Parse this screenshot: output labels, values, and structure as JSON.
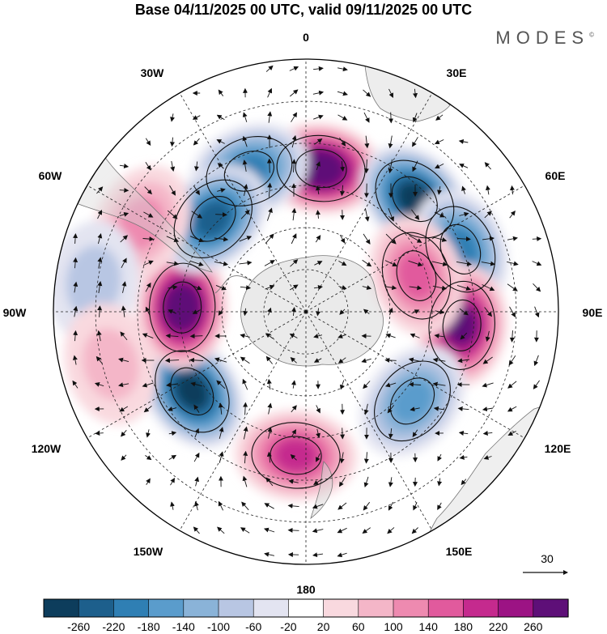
{
  "title": "Base 04/11/2025 00 UTC, valid 09/11/2025 00 UTC",
  "brand": "MODES",
  "brand_mark": "©",
  "lon_labels": {
    "l0": "0",
    "l30e": "30E",
    "l60e": "60E",
    "l90e": "90E",
    "l120e": "120E",
    "l150e": "150E",
    "l180": "180",
    "l150w": "150W",
    "l120w": "120W",
    "l90w": "90W",
    "l60w": "60W",
    "l30w": "30W"
  },
  "vector_scale": {
    "label": "30"
  },
  "colorbar": {
    "colors": [
      "#0d3d5c",
      "#1d5f8c",
      "#2f7fb4",
      "#5a9ccc",
      "#8ab3d8",
      "#b8c6e3",
      "#e3e4f1",
      "#ffffff",
      "#f9d9df",
      "#f4b6c8",
      "#ee8ab0",
      "#e15a9d",
      "#c52a8e",
      "#9c1384",
      "#5e0f78"
    ],
    "ticks": [
      "-260",
      "-220",
      "-180",
      "-140",
      "-100",
      "-60",
      "-20",
      "20",
      "60",
      "100",
      "140",
      "180",
      "220",
      "260"
    ]
  },
  "anomaly_centers": [
    {
      "name": "high-0",
      "lon_deg": 6,
      "dist_frac": 0.57,
      "value": 300
    },
    {
      "name": "low-40e",
      "lon_deg": 44,
      "dist_frac": 0.62,
      "value": -280
    },
    {
      "name": "low-60e",
      "lon_deg": 68,
      "dist_frac": 0.66,
      "value": -200
    },
    {
      "name": "high-90e",
      "lon_deg": 95,
      "dist_frac": 0.62,
      "value": 290
    },
    {
      "name": "high-72e",
      "lon_deg": 72,
      "dist_frac": 0.46,
      "value": 150
    },
    {
      "name": "low-130e",
      "lon_deg": 130,
      "dist_frac": 0.55,
      "value": -160
    },
    {
      "name": "high-175w",
      "lon_deg": -176,
      "dist_frac": 0.57,
      "value": 210
    },
    {
      "name": "low-130w",
      "lon_deg": -125,
      "dist_frac": 0.55,
      "value": -280
    },
    {
      "name": "high-90w",
      "lon_deg": -88,
      "dist_frac": 0.49,
      "value": 300
    },
    {
      "name": "low-30w",
      "lon_deg": -22,
      "dist_frac": 0.6,
      "value": -200
    },
    {
      "name": "low-45w",
      "lon_deg": -45,
      "dist_frac": 0.52,
      "value": -240
    },
    {
      "name": "high-60w",
      "lon_deg": -62,
      "dist_frac": 0.74,
      "value": 130
    },
    {
      "name": "low-80w",
      "lon_deg": -82,
      "dist_frac": 0.85,
      "value": -80
    },
    {
      "name": "high-100w",
      "lon_deg": -105,
      "dist_frac": 0.8,
      "value": 90
    }
  ]
}
